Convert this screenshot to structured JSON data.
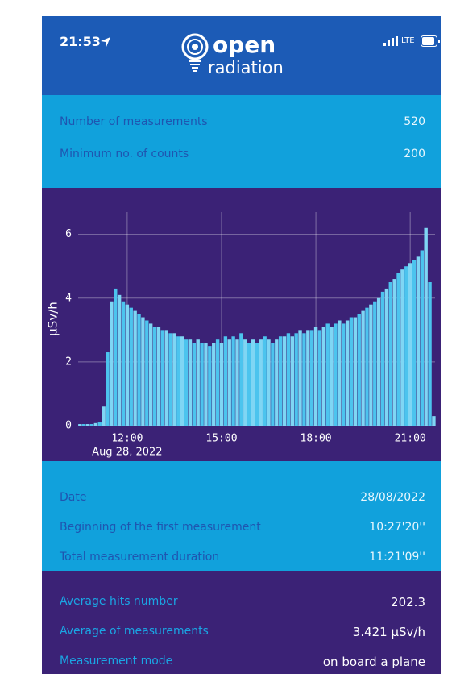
{
  "status": {
    "time": "21:53",
    "network": "LTE"
  },
  "logo": {
    "line1": "open",
    "line2": "radiation"
  },
  "summary": {
    "rows": [
      {
        "label": "Number of measurements",
        "value": "520"
      },
      {
        "label": "Minimum no. of counts",
        "value": "200"
      }
    ]
  },
  "chart": {
    "type": "bar",
    "color": "#4cc4ee",
    "ylabel": "µSv/h",
    "xlim": [
      10.44,
      21.79
    ],
    "ylim": [
      0,
      6.7
    ],
    "grid": true,
    "yticks": [
      0,
      2,
      4,
      6
    ],
    "xticks": [
      {
        "value": 12,
        "label": "12:00"
      },
      {
        "value": 15,
        "label": "15:00"
      },
      {
        "value": 18,
        "label": "18:00"
      },
      {
        "value": 21,
        "label": "21:00"
      }
    ],
    "x_tick_sublabel": "Aug 28, 2022",
    "x": [
      10.5,
      10.625,
      10.75,
      10.875,
      11,
      11.125,
      11.25,
      11.375,
      11.5,
      11.625,
      11.75,
      11.875,
      12,
      12.125,
      12.25,
      12.375,
      12.5,
      12.625,
      12.75,
      12.875,
      13,
      13.125,
      13.25,
      13.375,
      13.5,
      13.625,
      13.75,
      13.875,
      14,
      14.125,
      14.25,
      14.375,
      14.5,
      14.625,
      14.75,
      14.875,
      15,
      15.125,
      15.25,
      15.375,
      15.5,
      15.625,
      15.75,
      15.875,
      16,
      16.125,
      16.25,
      16.375,
      16.5,
      16.625,
      16.75,
      16.875,
      17,
      17.125,
      17.25,
      17.375,
      17.5,
      17.625,
      17.75,
      17.875,
      18,
      18.125,
      18.25,
      18.375,
      18.5,
      18.625,
      18.75,
      18.875,
      19,
      19.125,
      19.25,
      19.375,
      19.5,
      19.625,
      19.75,
      19.875,
      20,
      20.125,
      20.25,
      20.375,
      20.5,
      20.625,
      20.75,
      20.875,
      21,
      21.125,
      21.25,
      21.375,
      21.5,
      21.625,
      21.75
    ],
    "values": [
      0.05,
      0.05,
      0.05,
      0.05,
      0.08,
      0.1,
      0.6,
      2.3,
      3.9,
      4.3,
      4.1,
      3.9,
      3.8,
      3.7,
      3.6,
      3.5,
      3.4,
      3.3,
      3.2,
      3.1,
      3.1,
      3.0,
      3.0,
      2.9,
      2.9,
      2.8,
      2.8,
      2.7,
      2.7,
      2.6,
      2.7,
      2.6,
      2.6,
      2.5,
      2.6,
      2.7,
      2.6,
      2.8,
      2.7,
      2.8,
      2.7,
      2.9,
      2.7,
      2.6,
      2.7,
      2.6,
      2.7,
      2.8,
      2.7,
      2.6,
      2.7,
      2.8,
      2.8,
      2.9,
      2.8,
      2.9,
      3.0,
      2.9,
      3.0,
      3.0,
      3.1,
      3.0,
      3.1,
      3.2,
      3.1,
      3.2,
      3.3,
      3.2,
      3.3,
      3.4,
      3.4,
      3.5,
      3.6,
      3.7,
      3.8,
      3.9,
      4.0,
      4.2,
      4.3,
      4.5,
      4.6,
      4.8,
      4.9,
      5.0,
      5.1,
      5.2,
      5.3,
      5.5,
      6.2,
      4.5,
      0.3
    ]
  },
  "details": {
    "rows": [
      {
        "label": "Date",
        "value": "28/08/2022"
      },
      {
        "label": "Beginning of the first measurement",
        "value": "10:27'20''"
      },
      {
        "label": "Total measurement duration",
        "value": "11:21'09''"
      }
    ]
  },
  "averages": {
    "rows": [
      {
        "label": "Average hits number",
        "value": "202.3"
      },
      {
        "label": "Average of measurements",
        "value": "3.421  µSv/h"
      },
      {
        "label": "Measurement mode",
        "value": "on board a plane"
      }
    ]
  }
}
